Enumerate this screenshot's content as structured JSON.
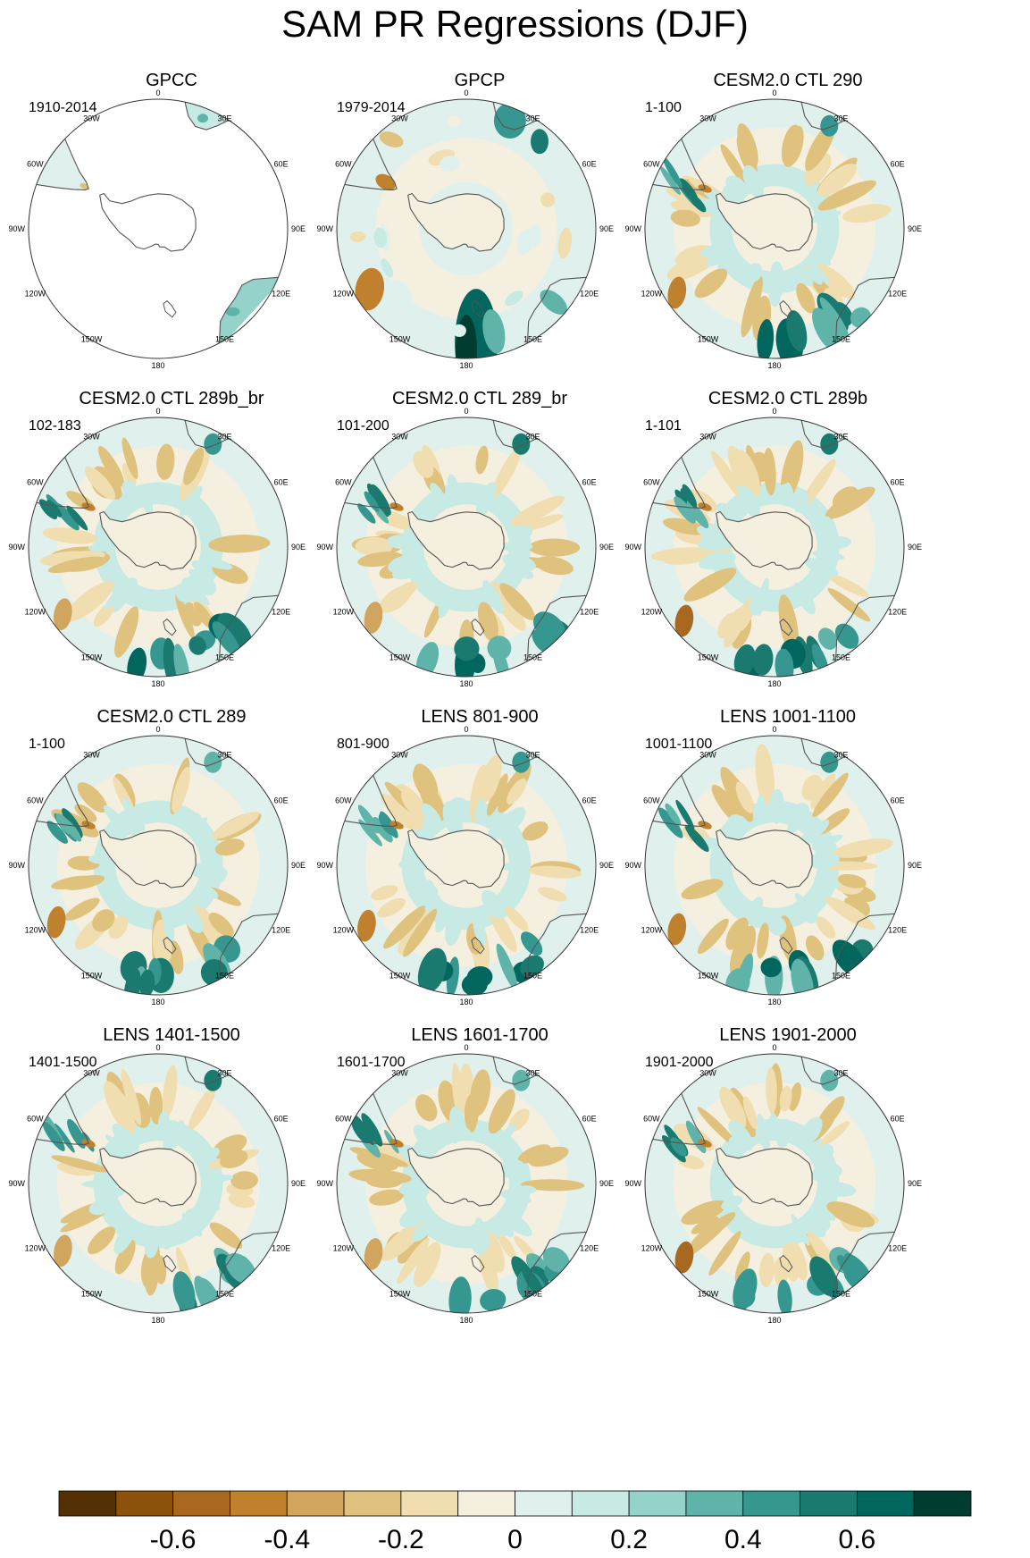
{
  "title": "SAM PR Regressions (DJF)",
  "meridian_labels": [
    "0",
    "30E",
    "60E",
    "90E",
    "120E",
    "150E",
    "180",
    "150W",
    "120W",
    "90W",
    "60W",
    "30W"
  ],
  "colors": {
    "land_outline": "#555555",
    "circle": "#333333",
    "no_data": "#ffffff"
  },
  "chart_data": {
    "type": "heatmap",
    "projection": "south-polar-stereographic",
    "colorbar": {
      "levels": [
        -0.7,
        -0.6,
        -0.5,
        -0.4,
        -0.3,
        -0.2,
        -0.1,
        0,
        0.1,
        0.2,
        0.3,
        0.4,
        0.5,
        0.6,
        0.7
      ],
      "colors": [
        "#543005",
        "#8c510a",
        "#a8681f",
        "#bf812d",
        "#d2a55e",
        "#dfc27d",
        "#f0deb0",
        "#f5efe0",
        "#e0f0ed",
        "#c7eae5",
        "#95d3ca",
        "#5fb3a8",
        "#35978f",
        "#1a7a70",
        "#01665e",
        "#003c30"
      ],
      "tick_labels": [
        {
          "value": -0.6,
          "label": "-0.6"
        },
        {
          "value": -0.4,
          "label": "-0.4"
        },
        {
          "value": -0.2,
          "label": "-0.2"
        },
        {
          "value": 0,
          "label": "0"
        },
        {
          "value": 0.2,
          "label": "0.2"
        },
        {
          "value": 0.4,
          "label": "0.4"
        },
        {
          "value": 0.6,
          "label": "0.6"
        }
      ]
    },
    "panels": [
      {
        "title": "GPCC",
        "period": "1910-2014",
        "style": "obs_land"
      },
      {
        "title": "GPCP",
        "period": "1979-2014",
        "style": "obs"
      },
      {
        "title": "CESM2.0 CTL 290",
        "period": "1-100",
        "style": "model"
      },
      {
        "title": "CESM2.0 CTL 289b_br",
        "period": "102-183",
        "style": "model"
      },
      {
        "title": "CESM2.0 CTL 289_br",
        "period": "101-200",
        "style": "model"
      },
      {
        "title": "CESM2.0 CTL 289b",
        "period": "1-101",
        "style": "model"
      },
      {
        "title": "CESM2.0 CTL 289",
        "period": "1-100",
        "style": "model"
      },
      {
        "title": "LENS 801-900",
        "period": "801-900",
        "style": "model"
      },
      {
        "title": "LENS 1001-1100",
        "period": "1001-1100",
        "style": "model"
      },
      {
        "title": "LENS 1401-1500",
        "period": "1401-1500",
        "style": "model"
      },
      {
        "title": "LENS 1601-1700",
        "period": "1601-1700",
        "style": "model"
      },
      {
        "title": "LENS 1901-2000",
        "period": "1901-2000",
        "style": "model"
      }
    ]
  }
}
